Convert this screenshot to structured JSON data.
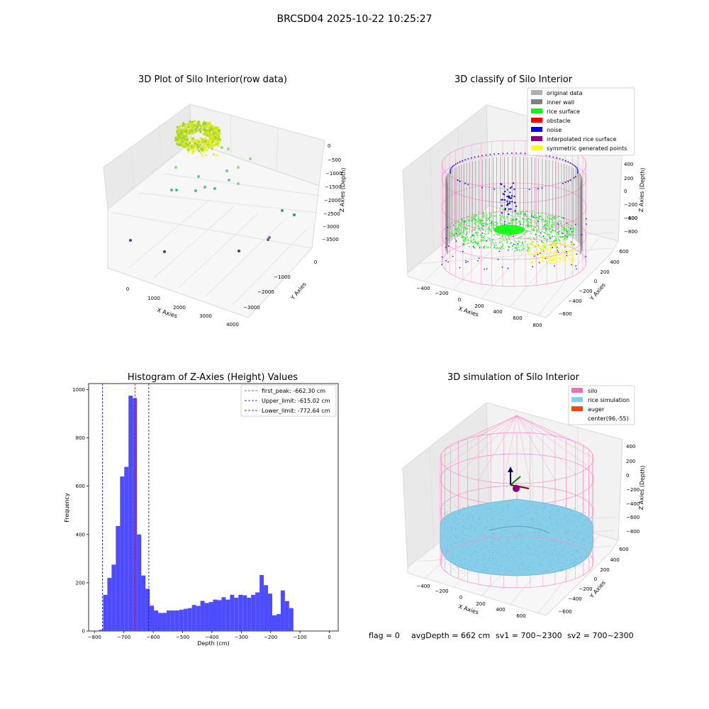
{
  "suptitle": "BRCSD04 2025-10-22 10:25:27",
  "footer": {
    "flag": "flag = 0",
    "avg": "avgDepth = 662 cm",
    "sv1": "sv1 = 700~2300",
    "sv2": "sv2 = 700~2300"
  },
  "colors": {
    "hist_bar": "#4d4dff",
    "first_peak": "#ff0000",
    "limit_lines": "#0000cc",
    "pane_face": "#f2f2f2",
    "grid": "#dcdcdc",
    "silo_wire": "#ff88c8",
    "rice_sim": "#87ceeb",
    "inner_wall": "#808080",
    "rice_surface": "#00ff00",
    "noise": "#0000ff",
    "symmetric": "#ffff00"
  },
  "panels": {
    "raw": {
      "title": "3D Plot of Silo Interior(row data)",
      "xlabel": "X Axies",
      "ylabel": "Y Axies",
      "zlabel": "Z Axies (Depth)",
      "xticks": [
        "0",
        "1000",
        "2000",
        "3000",
        "4000"
      ],
      "yticks": [
        "0",
        "−1000",
        "−2000",
        "−3000"
      ],
      "zticks": [
        "0",
        "−500",
        "−1000",
        "−1500",
        "−2000",
        "−2500",
        "−3000",
        "−3500"
      ]
    },
    "classify": {
      "title": "3D classify of Silo Interior",
      "xlabel": "X Axies",
      "ylabel": "Y Axies",
      "zlabel": "Z Axies (Depth)",
      "xticks": [
        "−400",
        "−200",
        "0",
        "200",
        "400",
        "600",
        "800"
      ],
      "yticks": [
        "600",
        "400",
        "200",
        "0",
        "−200",
        "−400",
        "−600"
      ],
      "zticks": [
        "400",
        "200",
        "0",
        "−200",
        "−400",
        "−600",
        "−800"
      ],
      "legend": [
        {
          "label": "original data",
          "color": "#b0b0b0"
        },
        {
          "label": "inner wall",
          "color": "#808080"
        },
        {
          "label": "rice surface",
          "color": "#00ff00"
        },
        {
          "label": "obstacle",
          "color": "#ff0000"
        },
        {
          "label": "noise",
          "color": "#0000ff"
        },
        {
          "label": "interpolated rice surface",
          "color": "#800080"
        },
        {
          "label": "symmetric generated points",
          "color": "#ffff00"
        }
      ]
    },
    "sim": {
      "title": "3D simulation of Silo Interior",
      "xlabel": "X Axies",
      "ylabel": "Y Axies",
      "zlabel": "Z Axies (Depth)",
      "xticks": [
        "−400",
        "−200",
        "0",
        "200",
        "400",
        "600"
      ],
      "yticks": [
        "600",
        "400",
        "200",
        "0",
        "−200",
        "−400",
        "−600"
      ],
      "zticks": [
        "400",
        "200",
        "0",
        "−200",
        "−400",
        "−600",
        "−800"
      ],
      "legend": [
        {
          "label": "silo",
          "color": "#ff69b4"
        },
        {
          "label": "rice simulation",
          "color": "#87ceeb"
        },
        {
          "label": "auger",
          "color": "#ff4500"
        },
        {
          "label": "center(96,-55)",
          "color": "none"
        }
      ]
    }
  },
  "chart_data": {
    "type": "bar",
    "title": "Histogram of Z-Axies (Height) Values",
    "xlabel": "Depth (cm)",
    "ylabel": "Frequency",
    "xlim": [
      -820,
      30
    ],
    "ylim": [
      0,
      1025
    ],
    "xticks": [
      -800,
      -700,
      -600,
      -500,
      -400,
      -300,
      -200,
      -100,
      0
    ],
    "yticks": [
      0,
      200,
      400,
      600,
      800,
      1000
    ],
    "bin_start": -785,
    "bin_width": 14.4,
    "values": [
      5,
      150,
      220,
      275,
      435,
      640,
      680,
      975,
      965,
      400,
      230,
      175,
      105,
      85,
      75,
      75,
      85,
      85,
      85,
      88,
      92,
      95,
      108,
      104,
      125,
      116,
      120,
      130,
      128,
      140,
      130,
      150,
      138,
      150,
      148,
      138,
      150,
      160,
      232,
      190,
      155,
      65,
      70,
      168,
      124,
      95
    ],
    "lines": [
      {
        "label": "first_peak: -662.30 cm",
        "value": -662.3,
        "color": "#ff0000"
      },
      {
        "label": "Upper_limit: -615.02 cm",
        "value": -615.02,
        "color": "#0000cc"
      },
      {
        "label": "Lower_limit: -772.64 cm",
        "value": -772.64,
        "color": "#0000cc"
      }
    ],
    "legend_position": "top-right"
  }
}
